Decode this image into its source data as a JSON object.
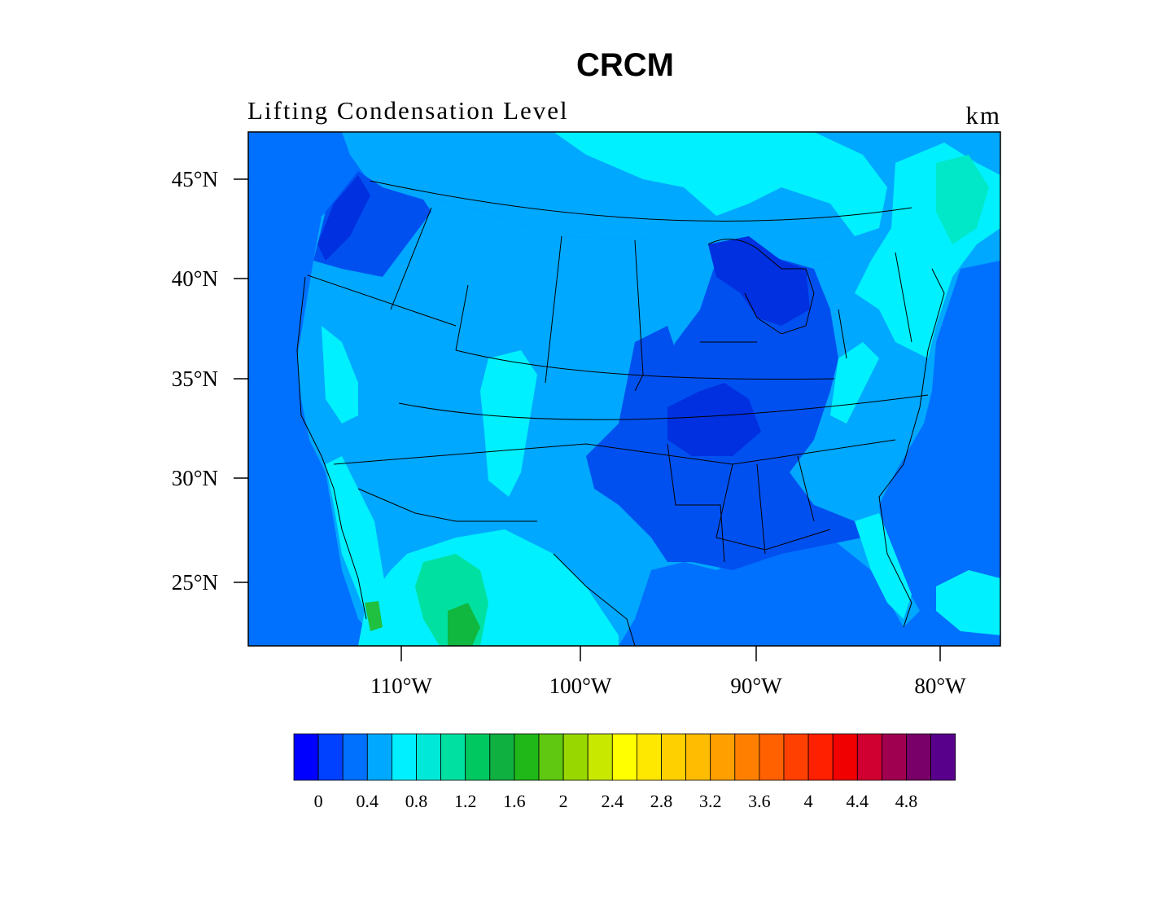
{
  "title": "CRCM",
  "left_string": "Lifting Condensation Level",
  "right_string": "km",
  "latitude_ticks": [
    "45°N",
    "40°N",
    "35°N",
    "30°N",
    "25°N"
  ],
  "longitude_ticks": [
    "110°W",
    "100°W",
    "90°W",
    "80°W"
  ],
  "colorbar": {
    "labels": [
      "0",
      "0.4",
      "0.8",
      "1.2",
      "1.6",
      "2",
      "2.4",
      "2.8",
      "3.2",
      "3.6",
      "4",
      "4.4",
      "4.8"
    ],
    "colors": [
      "#0000ff",
      "#0040ff",
      "#0070ff",
      "#00a8ff",
      "#00f0ff",
      "#00e8d8",
      "#00e0a0",
      "#00c860",
      "#10b040",
      "#20b818",
      "#60c810",
      "#98d800",
      "#c8e800",
      "#ffff00",
      "#ffe800",
      "#ffd000",
      "#ffbc00",
      "#ffa000",
      "#ff8000",
      "#ff6000",
      "#ff4000",
      "#ff2000",
      "#f00000",
      "#d00030",
      "#a00050",
      "#780068",
      "#58008c"
    ]
  },
  "map_fill_colors": {
    "ocean": "#0070ff",
    "low": "#0050f0",
    "mid": "#00a8ff",
    "high": "#00f0ff",
    "higher": "#00e8c8",
    "peak": "#10b840"
  }
}
